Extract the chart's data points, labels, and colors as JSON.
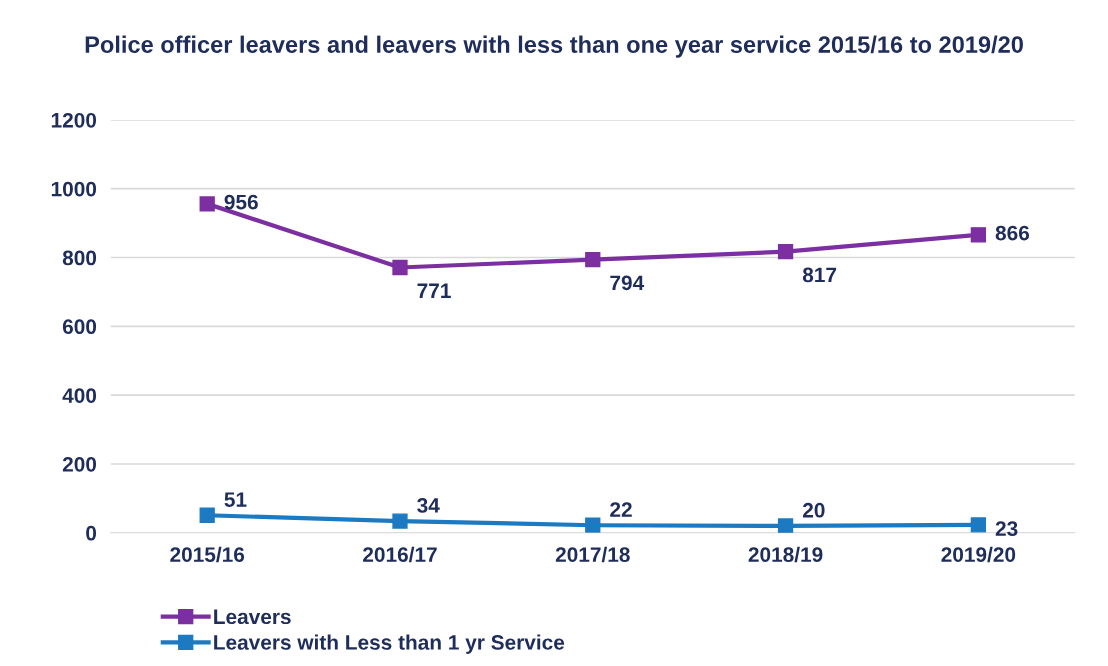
{
  "chart_data": {
    "type": "line",
    "title": "Police officer leavers and leavers with less than one year service 2015/16 to 2019/20",
    "categories": [
      "2015/16",
      "2016/17",
      "2017/18",
      "2018/19",
      "2019/20"
    ],
    "series": [
      {
        "name": "Leavers",
        "color": "#7b2fa0",
        "values": [
          956,
          771,
          794,
          817,
          866
        ]
      },
      {
        "name": "Leavers with Less than 1 yr Service",
        "color": "#1b7ac2",
        "values": [
          51,
          34,
          22,
          20,
          23
        ]
      }
    ],
    "ylim": [
      0,
      1200
    ],
    "yticks": [
      0,
      200,
      400,
      600,
      800,
      1000,
      1200
    ],
    "grid": "y",
    "legend": "bottom left",
    "marker": "square",
    "line_style": "solid",
    "data_labels": true
  }
}
